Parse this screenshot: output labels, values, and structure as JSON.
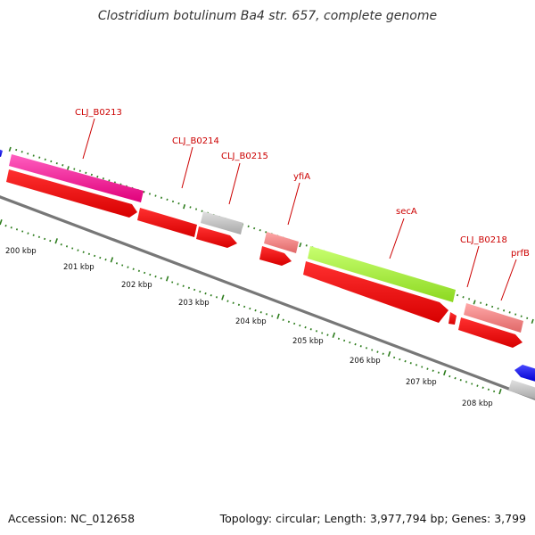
{
  "title": "Clostridium botulinum Ba4 str. 657, complete genome",
  "footer": {
    "accession": "Accession: NC_012658",
    "summary": "Topology: circular; Length: 3,977,794 bp; Genes: 3,799"
  },
  "colors": {
    "backbone": "#777777",
    "tick": "#2e7d1e",
    "label": "#cc0000",
    "cds": "#ff0000",
    "magenta": "#ff1493",
    "grey_gene": "#c0c0c0",
    "pink_gene": "#f08080",
    "green_gene": "#a6f038",
    "blue_gene": "#1a1aff"
  },
  "kbp_labels": [
    "200 kbp",
    "201 kbp",
    "202 kbp",
    "203 kbp",
    "204 kbp",
    "205 kbp",
    "206 kbp",
    "207 kbp",
    "208 kbp"
  ],
  "gene_labels": [
    "CLJ_B0213",
    "CLJ_B0214",
    "CLJ_B0215",
    "yfiA",
    "secA",
    "CLJ_B0218",
    "prfB"
  ]
}
